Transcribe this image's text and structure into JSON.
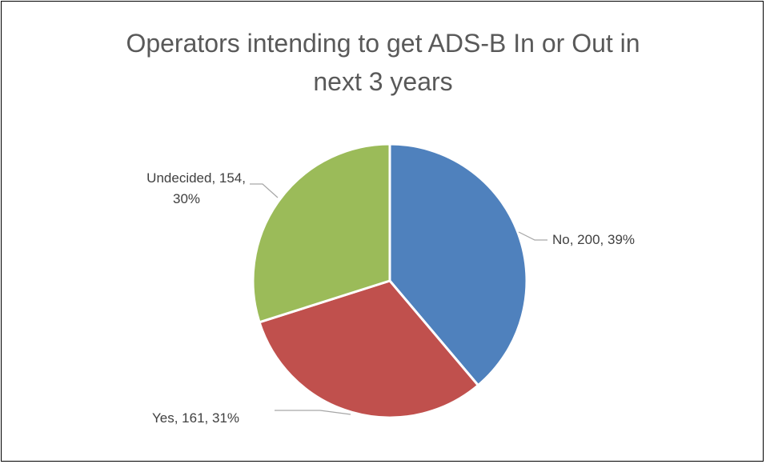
{
  "chart_data": {
    "type": "pie",
    "title": "Operators intending to get ADS-B In or Out in next 3 years",
    "title_lines": [
      "Operators intending to get ADS-B In or Out in",
      "next 3 years"
    ],
    "categories": [
      "No",
      "Yes",
      "Undecided"
    ],
    "values": [
      200,
      161,
      154
    ],
    "percentages": [
      "39%",
      "31%",
      "30%"
    ],
    "colors": [
      "#4F81BD",
      "#C0504D",
      "#9BBB59"
    ],
    "data_labels": [
      {
        "lines": [
          "No, 200, 39%"
        ]
      },
      {
        "lines": [
          "Yes, 161, 31%"
        ]
      },
      {
        "lines": [
          "Undecided, 154,",
          "30%"
        ]
      }
    ],
    "start_angle_deg": 0,
    "direction": "clockwise",
    "legend": "none",
    "border_color": "#000000",
    "title_color": "#595959",
    "label_color": "#404040",
    "leader_color": "#A6A6A6"
  }
}
